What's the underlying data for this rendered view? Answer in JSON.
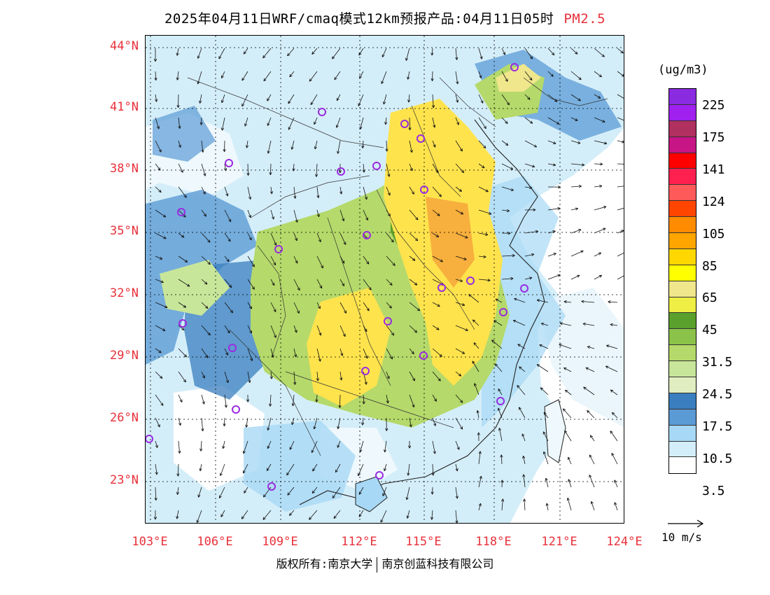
{
  "title": {
    "main": "2025年04月11日WRF/cmaq模式12km预报产品:04月11日05时",
    "variable": "PM2.5"
  },
  "lat_labels": [
    "44°N",
    "41°N",
    "38°N",
    "35°N",
    "32°N",
    "29°N",
    "26°N",
    "23°N"
  ],
  "lon_labels": [
    "103°E",
    "106°E",
    "109°E",
    "112°E",
    "115°E",
    "118°E",
    "121°E",
    "124°E"
  ],
  "colorbar": {
    "unit": "(ug/m3)",
    "colors": [
      "#8a2be2",
      "#a020f0",
      "#b03060",
      "#c71585",
      "#ff0000",
      "#ff2050",
      "#ff5a5a",
      "#ff4500",
      "#ff8c00",
      "#ffa500",
      "#ffd700",
      "#ffff00",
      "#f0e68c",
      "#eeee44",
      "#5aa02c",
      "#8bc34a",
      "#b5d96a",
      "#c8e69a",
      "#e0edc0",
      "#3a7ebf",
      "#5b9bd5",
      "#a7d8f5",
      "#d4eef9",
      "#ffffff"
    ],
    "labels": [
      "225",
      "175",
      "141",
      "124",
      "105",
      "85",
      "65",
      "45",
      "31.5",
      "24.5",
      "17.5",
      "10.5",
      "3.5"
    ]
  },
  "wind_key": "10 m/s",
  "footer": {
    "left": "版权所有:南京大学",
    "right": "南京创蓝科技有限公司"
  },
  "map_layers": {
    "ocean_color": "#ffffff",
    "low_color": "#d4eef9",
    "blue_color": "#5b9bd5",
    "green_color": "#b5d96a",
    "yellow_color": "#ffe34d",
    "orange_color": "#f6a63b",
    "station_color": "#9a2be0"
  }
}
